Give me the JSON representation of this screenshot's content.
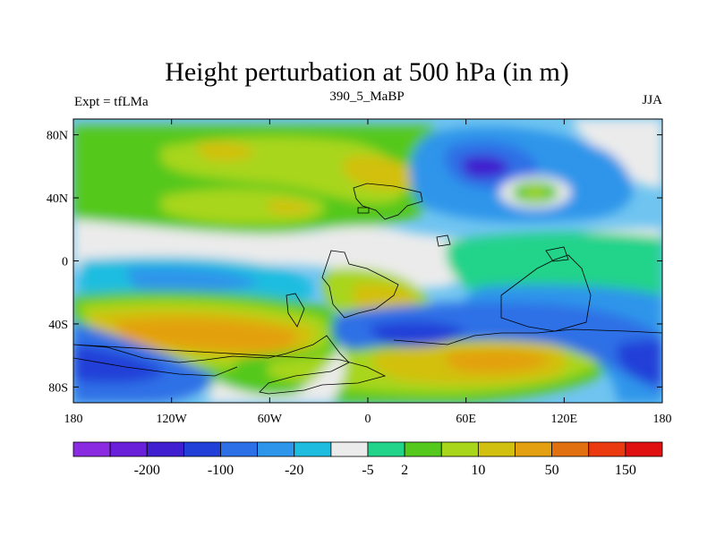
{
  "chart_data": {
    "type": "heatmap",
    "title": "Height perturbation at 500 hPa (in m)",
    "left_label": "Expt = tfLMa",
    "center_label": "390_5_MaBP",
    "right_label": "JJA",
    "x_ticks": [
      "180",
      "120W",
      "60W",
      "0",
      "60E",
      "120E",
      "180"
    ],
    "x_tick_values": [
      -180,
      -120,
      -60,
      0,
      60,
      120,
      180
    ],
    "y_ticks": [
      "80N",
      "40N",
      "0",
      "40S",
      "80S"
    ],
    "y_tick_values": [
      80,
      40,
      0,
      -40,
      -80
    ],
    "xlim": [
      -180,
      180
    ],
    "ylim": [
      -90,
      90
    ],
    "colorbar": {
      "colors": [
        "#8a2be2",
        "#6a1fd8",
        "#3f1fcf",
        "#2040d8",
        "#2d6fe6",
        "#2d95ea",
        "#1ebde0",
        "#ebebeb",
        "#22d38a",
        "#55c81e",
        "#a8d61a",
        "#d2c010",
        "#e3a010",
        "#e07010",
        "#ec3a10",
        "#e01010"
      ],
      "labels": [
        "-200",
        "-100",
        "-20",
        "-5",
        "2",
        "10",
        "50",
        "150"
      ],
      "label_after_box": [
        1,
        3,
        5,
        7,
        8,
        10,
        12,
        14
      ]
    },
    "colors": {
      "lightning_blue": "#6fc4f0",
      "zero_band": "#ebebeb",
      "green": "#22d38a",
      "lime": "#55c81e",
      "yellow": "#a8d61a",
      "olive_yellow": "#d2c010",
      "orange": "#e3a010",
      "blue": "#2d6fe6",
      "dark_blue": "#2040d8",
      "indigo": "#3f1fcf"
    }
  }
}
